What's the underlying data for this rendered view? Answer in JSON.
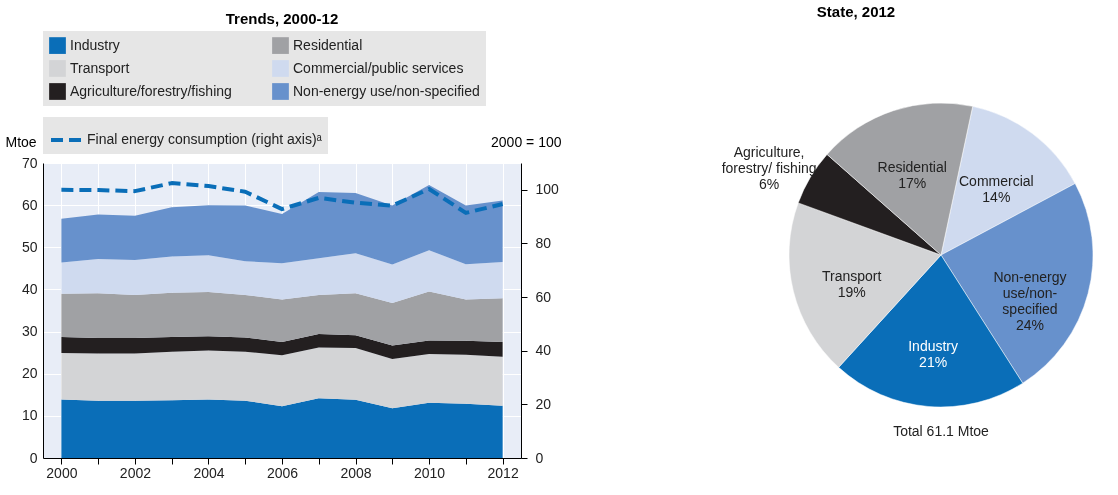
{
  "chart_data": [
    {
      "type": "area",
      "title": "Trends, 2000-12",
      "ylabel": "Mtoe",
      "y2label": "2000 = 100",
      "stacked": true,
      "x": [
        2000,
        2001,
        2002,
        2003,
        2004,
        2005,
        2006,
        2007,
        2008,
        2009,
        2010,
        2011,
        2012
      ],
      "series": [
        {
          "name": "Industry",
          "color": "#0a6eb8",
          "values": [
            13.9,
            13.6,
            13.6,
            13.7,
            13.9,
            13.6,
            12.3,
            14.2,
            13.8,
            11.8,
            13.1,
            12.9,
            12.4
          ]
        },
        {
          "name": "Transport",
          "color": "#d3d4d6",
          "values": [
            11.0,
            11.2,
            11.2,
            11.5,
            11.6,
            11.6,
            12.1,
            12.0,
            12.3,
            11.7,
            11.6,
            11.6,
            11.6
          ]
        },
        {
          "name": "Agriculture/forestry/fishing",
          "color": "#231f20",
          "values": [
            3.8,
            3.7,
            3.7,
            3.5,
            3.4,
            3.4,
            3.1,
            3.2,
            3.0,
            3.2,
            3.2,
            3.3,
            3.5
          ]
        },
        {
          "name": "Residential",
          "color": "#a0a1a4",
          "values": [
            10.3,
            10.6,
            10.2,
            10.5,
            10.5,
            10.1,
            10.1,
            9.3,
            10.0,
            10.1,
            11.6,
            9.8,
            10.4
          ]
        },
        {
          "name": "Commercial/public services",
          "color": "#cfdaef",
          "values": [
            7.4,
            8.1,
            8.3,
            8.6,
            8.7,
            8.0,
            8.6,
            8.7,
            9.5,
            9.1,
            9.8,
            8.4,
            8.6
          ]
        },
        {
          "name": "Non-energy use/non-specified",
          "color": "#6791cc",
          "values": [
            10.4,
            10.6,
            10.5,
            11.7,
            11.9,
            13.2,
            11.7,
            15.7,
            14.3,
            14.0,
            15.5,
            13.9,
            14.6
          ]
        },
        {
          "name": "Final energy consumption (right axis)ᵃ",
          "type": "line",
          "axis": "y2",
          "line_style": "dashed",
          "color": "#0a6eb8",
          "values": [
            100,
            99.9,
            99.5,
            102.5,
            101.4,
            99.3,
            92.8,
            97.0,
            95.2,
            94.1,
            100.3,
            91.4,
            94.7
          ]
        }
      ],
      "xlim": [
        1999.5,
        2012.5
      ],
      "xticks": [
        2000,
        {
          "value": 2001,
          "label": null
        },
        2002,
        {
          "value": 2003,
          "label": null
        },
        2004,
        {
          "value": 2005,
          "label": null
        },
        2006,
        {
          "value": 2007,
          "label": null
        },
        2008,
        {
          "value": 2009,
          "label": null
        },
        2010,
        {
          "value": 2011,
          "label": null
        },
        2012
      ],
      "ylim": [
        0,
        70
      ],
      "yticks": [
        0,
        10,
        20,
        30,
        40,
        50,
        60,
        70
      ],
      "y2lim": [
        0,
        110
      ],
      "y2ticks": [
        0,
        20,
        40,
        60,
        80,
        100
      ],
      "grid": true,
      "legend": "top left"
    },
    {
      "type": "pie",
      "title": "State, 2012",
      "categories": [
        "Commercial",
        "Non-energy\nuse/non-\nspecified",
        "Industry",
        "Transport",
        "Agriculture,\nforestry/ fishing",
        "Residential"
      ],
      "values": [
        14,
        24,
        21,
        19,
        6,
        17
      ],
      "value_labels": [
        "14%",
        "24%",
        "21%",
        "19%",
        "6%",
        "17%"
      ],
      "colors": [
        "#cfdaef",
        "#6791cc",
        "#0a6eb8",
        "#d3d4d6",
        "#231f20",
        "#a0a1a4"
      ],
      "annotations": [
        "Total  61.1 Mtoe"
      ]
    }
  ]
}
